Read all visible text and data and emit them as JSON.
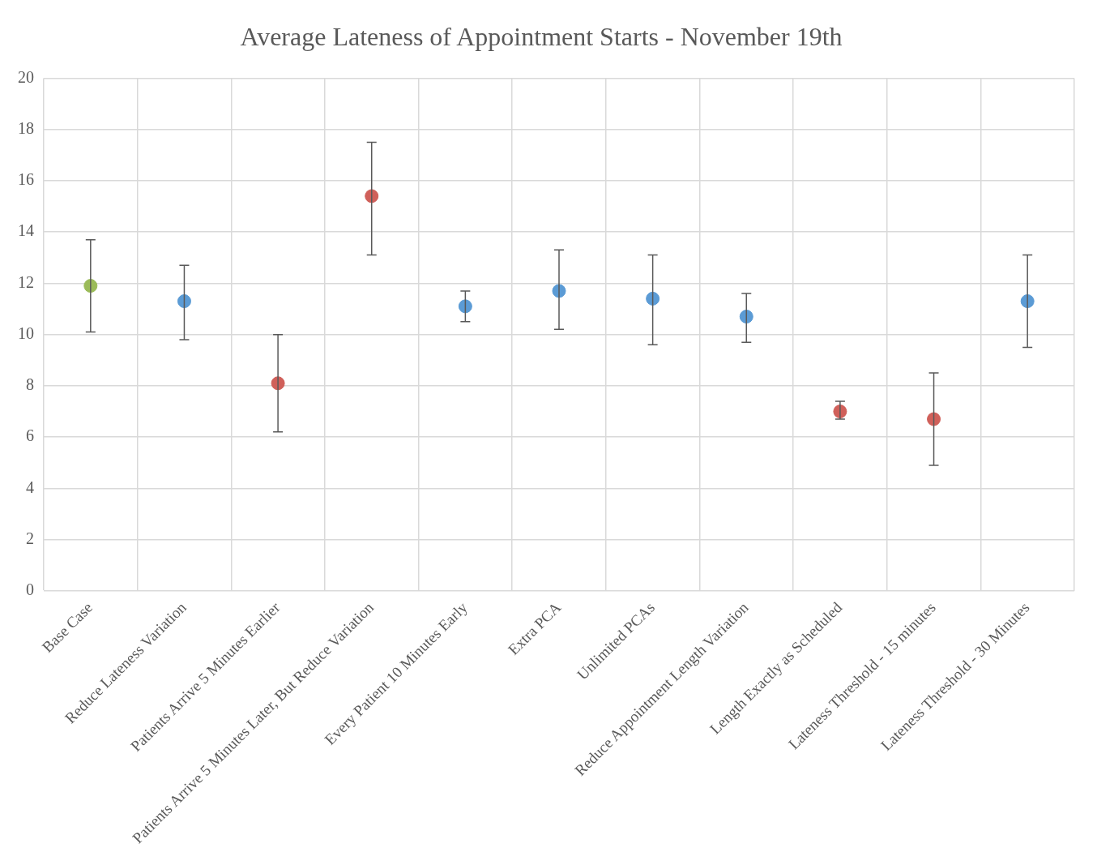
{
  "chart_data": {
    "type": "scatter",
    "title": "Average Lateness of Appointment Starts - November 19th",
    "categories": [
      "Base Case",
      "Reduce Lateness Variation",
      "Patients Arrive 5 Minutes Earlier",
      "Patients Arrive 5 Minutes Later, But Reduce Variation",
      "Every Patient 10 Minutes Early",
      "Extra PCA",
      "Unlimited PCAs",
      "Reduce Appointment Length Variation",
      "Length Exactly as Scheduled",
      "Lateness Threshold - 15 minutes",
      "Lateness Threshold - 30 Minutes"
    ],
    "values": [
      11.9,
      11.3,
      8.1,
      15.4,
      11.1,
      11.7,
      11.4,
      10.7,
      7.0,
      6.7,
      11.3
    ],
    "errors": [
      [
        10.1,
        13.7
      ],
      [
        9.8,
        12.7
      ],
      [
        6.2,
        10.0
      ],
      [
        13.1,
        17.5
      ],
      [
        10.5,
        11.7
      ],
      [
        10.2,
        13.3
      ],
      [
        9.6,
        13.1
      ],
      [
        9.7,
        11.6
      ],
      [
        6.7,
        7.4
      ],
      [
        4.9,
        8.5
      ],
      [
        9.5,
        13.1
      ]
    ],
    "colors": [
      "#9bbb59",
      "#5b9bd5",
      "#d0605a",
      "#d0605a",
      "#5b9bd5",
      "#5b9bd5",
      "#5b9bd5",
      "#5b9bd5",
      "#d0605a",
      "#d0605a",
      "#5b9bd5"
    ],
    "ylim": [
      0,
      20
    ],
    "yticks": [
      0,
      2,
      4,
      6,
      8,
      10,
      12,
      14,
      16,
      18,
      20
    ],
    "grid": true,
    "marker": "circle",
    "legend": false
  }
}
